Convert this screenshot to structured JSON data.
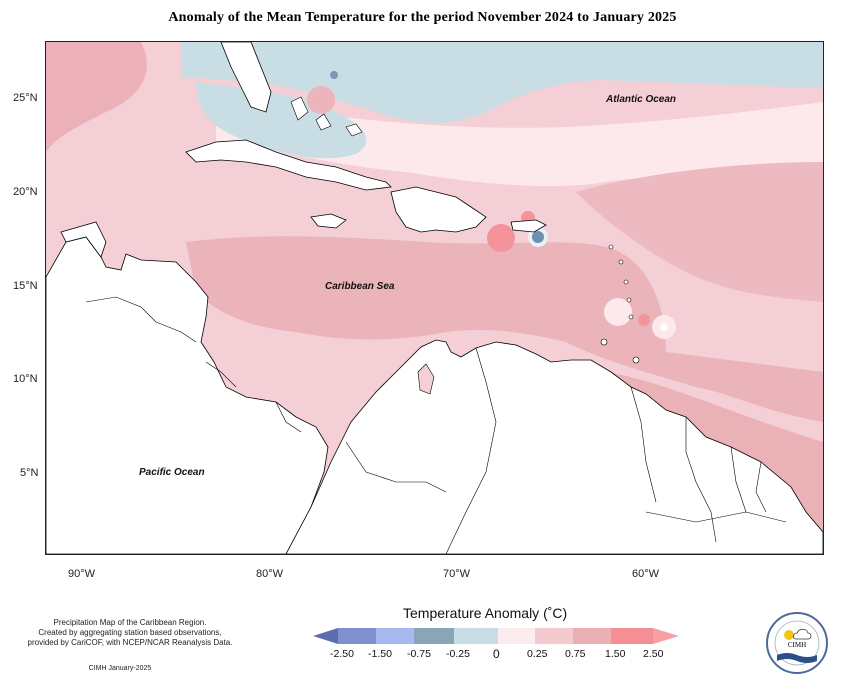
{
  "title": "Anomaly of the Mean Temperature for the period November 2024 to January 2025",
  "map": {
    "lat_labels": [
      "25°N",
      "20°N",
      "15°N",
      "10°N",
      "5°N"
    ],
    "lon_labels": [
      "90°W",
      "80°W",
      "70°W",
      "60°W"
    ],
    "ocean_labels": {
      "atlantic": "Atlantic Ocean",
      "caribbean": "Caribbean Sea",
      "pacific": "Pacific Ocean"
    }
  },
  "legend": {
    "title": "Temperature Anomaly (˚C)",
    "labels": [
      "-2.50",
      "-1.50",
      "-0.75",
      "-0.25",
      "0",
      "0.25",
      "0.75",
      "1.50",
      "2.50"
    ],
    "colors": [
      "#5b6db0",
      "#8a98d6",
      "#a9b9ef",
      "#8aa5b8",
      "#c9dde5",
      "#fdecee",
      "#f4cad1",
      "#ebb0b5",
      "#f48f94",
      "#f7a0a4"
    ]
  },
  "footer": {
    "line1": "Precipitation Map of the Caribbean Region.",
    "line2": "Created by aggregating station based observations,",
    "line3": "provided by CariCOF, with NCEP/NCAR Reanalysis Data.",
    "credit": "CIMH January-2025"
  },
  "logo": {
    "text": "CIMH"
  }
}
